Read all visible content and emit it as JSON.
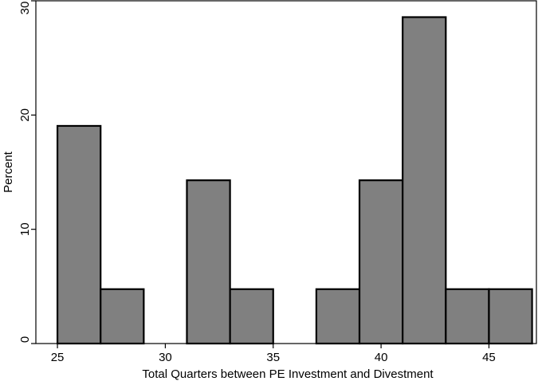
{
  "chart_data": {
    "type": "bar",
    "histogram": true,
    "title": "",
    "xlabel": "Total Quarters between PE Investment and Divestment",
    "ylabel": "Percent",
    "xlim": [
      24,
      47.2
    ],
    "ylim": [
      0,
      30
    ],
    "x_ticks": [
      25,
      30,
      35,
      40,
      45
    ],
    "y_ticks": [
      0,
      10,
      20,
      30
    ],
    "grid": false,
    "legend": "none",
    "bin_width": 2,
    "bins": [
      {
        "start": 25,
        "end": 27,
        "value": 19.05
      },
      {
        "start": 27,
        "end": 29,
        "value": 4.76
      },
      {
        "start": 29,
        "end": 31,
        "value": 0
      },
      {
        "start": 31,
        "end": 33,
        "value": 14.29
      },
      {
        "start": 33,
        "end": 35,
        "value": 4.76
      },
      {
        "start": 35,
        "end": 37,
        "value": 0
      },
      {
        "start": 37,
        "end": 39,
        "value": 4.76
      },
      {
        "start": 39,
        "end": 41,
        "value": 14.29
      },
      {
        "start": 41,
        "end": 43,
        "value": 28.57
      },
      {
        "start": 43,
        "end": 45,
        "value": 4.76
      },
      {
        "start": 45,
        "end": 47,
        "value": 4.76
      }
    ],
    "colors": {
      "bar_fill": "#808080",
      "bar_stroke": "#000000",
      "axis": "#000000",
      "background": "#ffffff"
    }
  }
}
